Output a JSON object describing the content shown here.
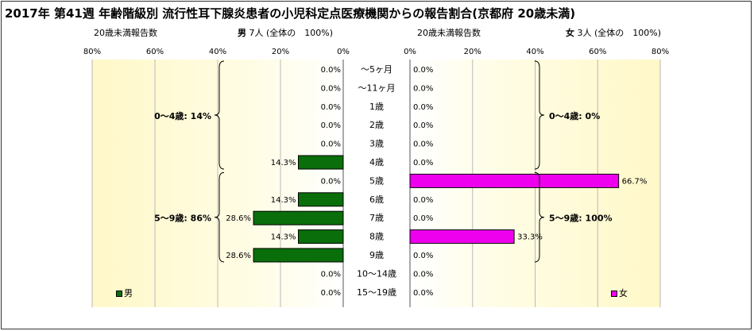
{
  "title": "2017年 第41週 年齢階級別 流行性耳下腺炎患者の小児科定点医療機関からの報告割合(京都府 20歳未満)",
  "left": {
    "header_label": "20歳未満報告数",
    "header_gender": "男",
    "header_count": "7人",
    "header_total": "(全体の　100%)",
    "axis_ticks": [
      "80%",
      "60%",
      "40%",
      "20%",
      "0%"
    ],
    "legend_label": "男",
    "color": "#0a6e0a",
    "group_labels": [
      "0～4歳: 14%",
      "5～9歳: 86%"
    ]
  },
  "right": {
    "header_label": "20歳未満報告数",
    "header_gender": "女",
    "header_count": "3人",
    "header_total": "(全体の　100%)",
    "axis_ticks": [
      "0%",
      "20%",
      "40%",
      "60%",
      "80%"
    ],
    "legend_label": "女",
    "color": "#ee00ee",
    "group_labels": [
      "0～4歳: 0%",
      "5～9歳: 100%"
    ]
  },
  "chart_data": [
    {
      "type": "bar",
      "title": "男",
      "orientation": "horizontal",
      "direction": "leftward",
      "categories": [
        "～5ヶ月",
        "～11ヶ月",
        "1歳",
        "2歳",
        "3歳",
        "4歳",
        "5歳",
        "6歳",
        "7歳",
        "8歳",
        "9歳",
        "10～14歳",
        "15～19歳"
      ],
      "values": [
        0.0,
        0.0,
        0.0,
        0.0,
        0.0,
        14.3,
        0.0,
        14.3,
        28.6,
        14.3,
        28.6,
        0.0,
        0.0
      ],
      "value_labels": [
        "0.0%",
        "0.0%",
        "0.0%",
        "0.0%",
        "0.0%",
        "14.3%",
        "0.0%",
        "14.3%",
        "28.6%",
        "14.3%",
        "28.6%",
        "0.0%",
        "0.0%"
      ],
      "xlim": [
        0,
        80
      ],
      "unit": "%",
      "grid": true,
      "legend": "bottom-left"
    },
    {
      "type": "bar",
      "title": "女",
      "orientation": "horizontal",
      "direction": "rightward",
      "categories": [
        "～5ヶ月",
        "～11ヶ月",
        "1歳",
        "2歳",
        "3歳",
        "4歳",
        "5歳",
        "6歳",
        "7歳",
        "8歳",
        "9歳",
        "10～14歳",
        "15～19歳"
      ],
      "values": [
        0.0,
        0.0,
        0.0,
        0.0,
        0.0,
        0.0,
        66.7,
        0.0,
        0.0,
        33.3,
        0.0,
        0.0,
        0.0
      ],
      "value_labels": [
        "0.0%",
        "0.0%",
        "0.0%",
        "0.0%",
        "0.0%",
        "0.0%",
        "66.7%",
        "0.0%",
        "0.0%",
        "33.3%",
        "0.0%",
        "0.0%",
        "0.0%"
      ],
      "xlim": [
        0,
        80
      ],
      "unit": "%",
      "grid": true,
      "legend": "bottom-right"
    }
  ]
}
